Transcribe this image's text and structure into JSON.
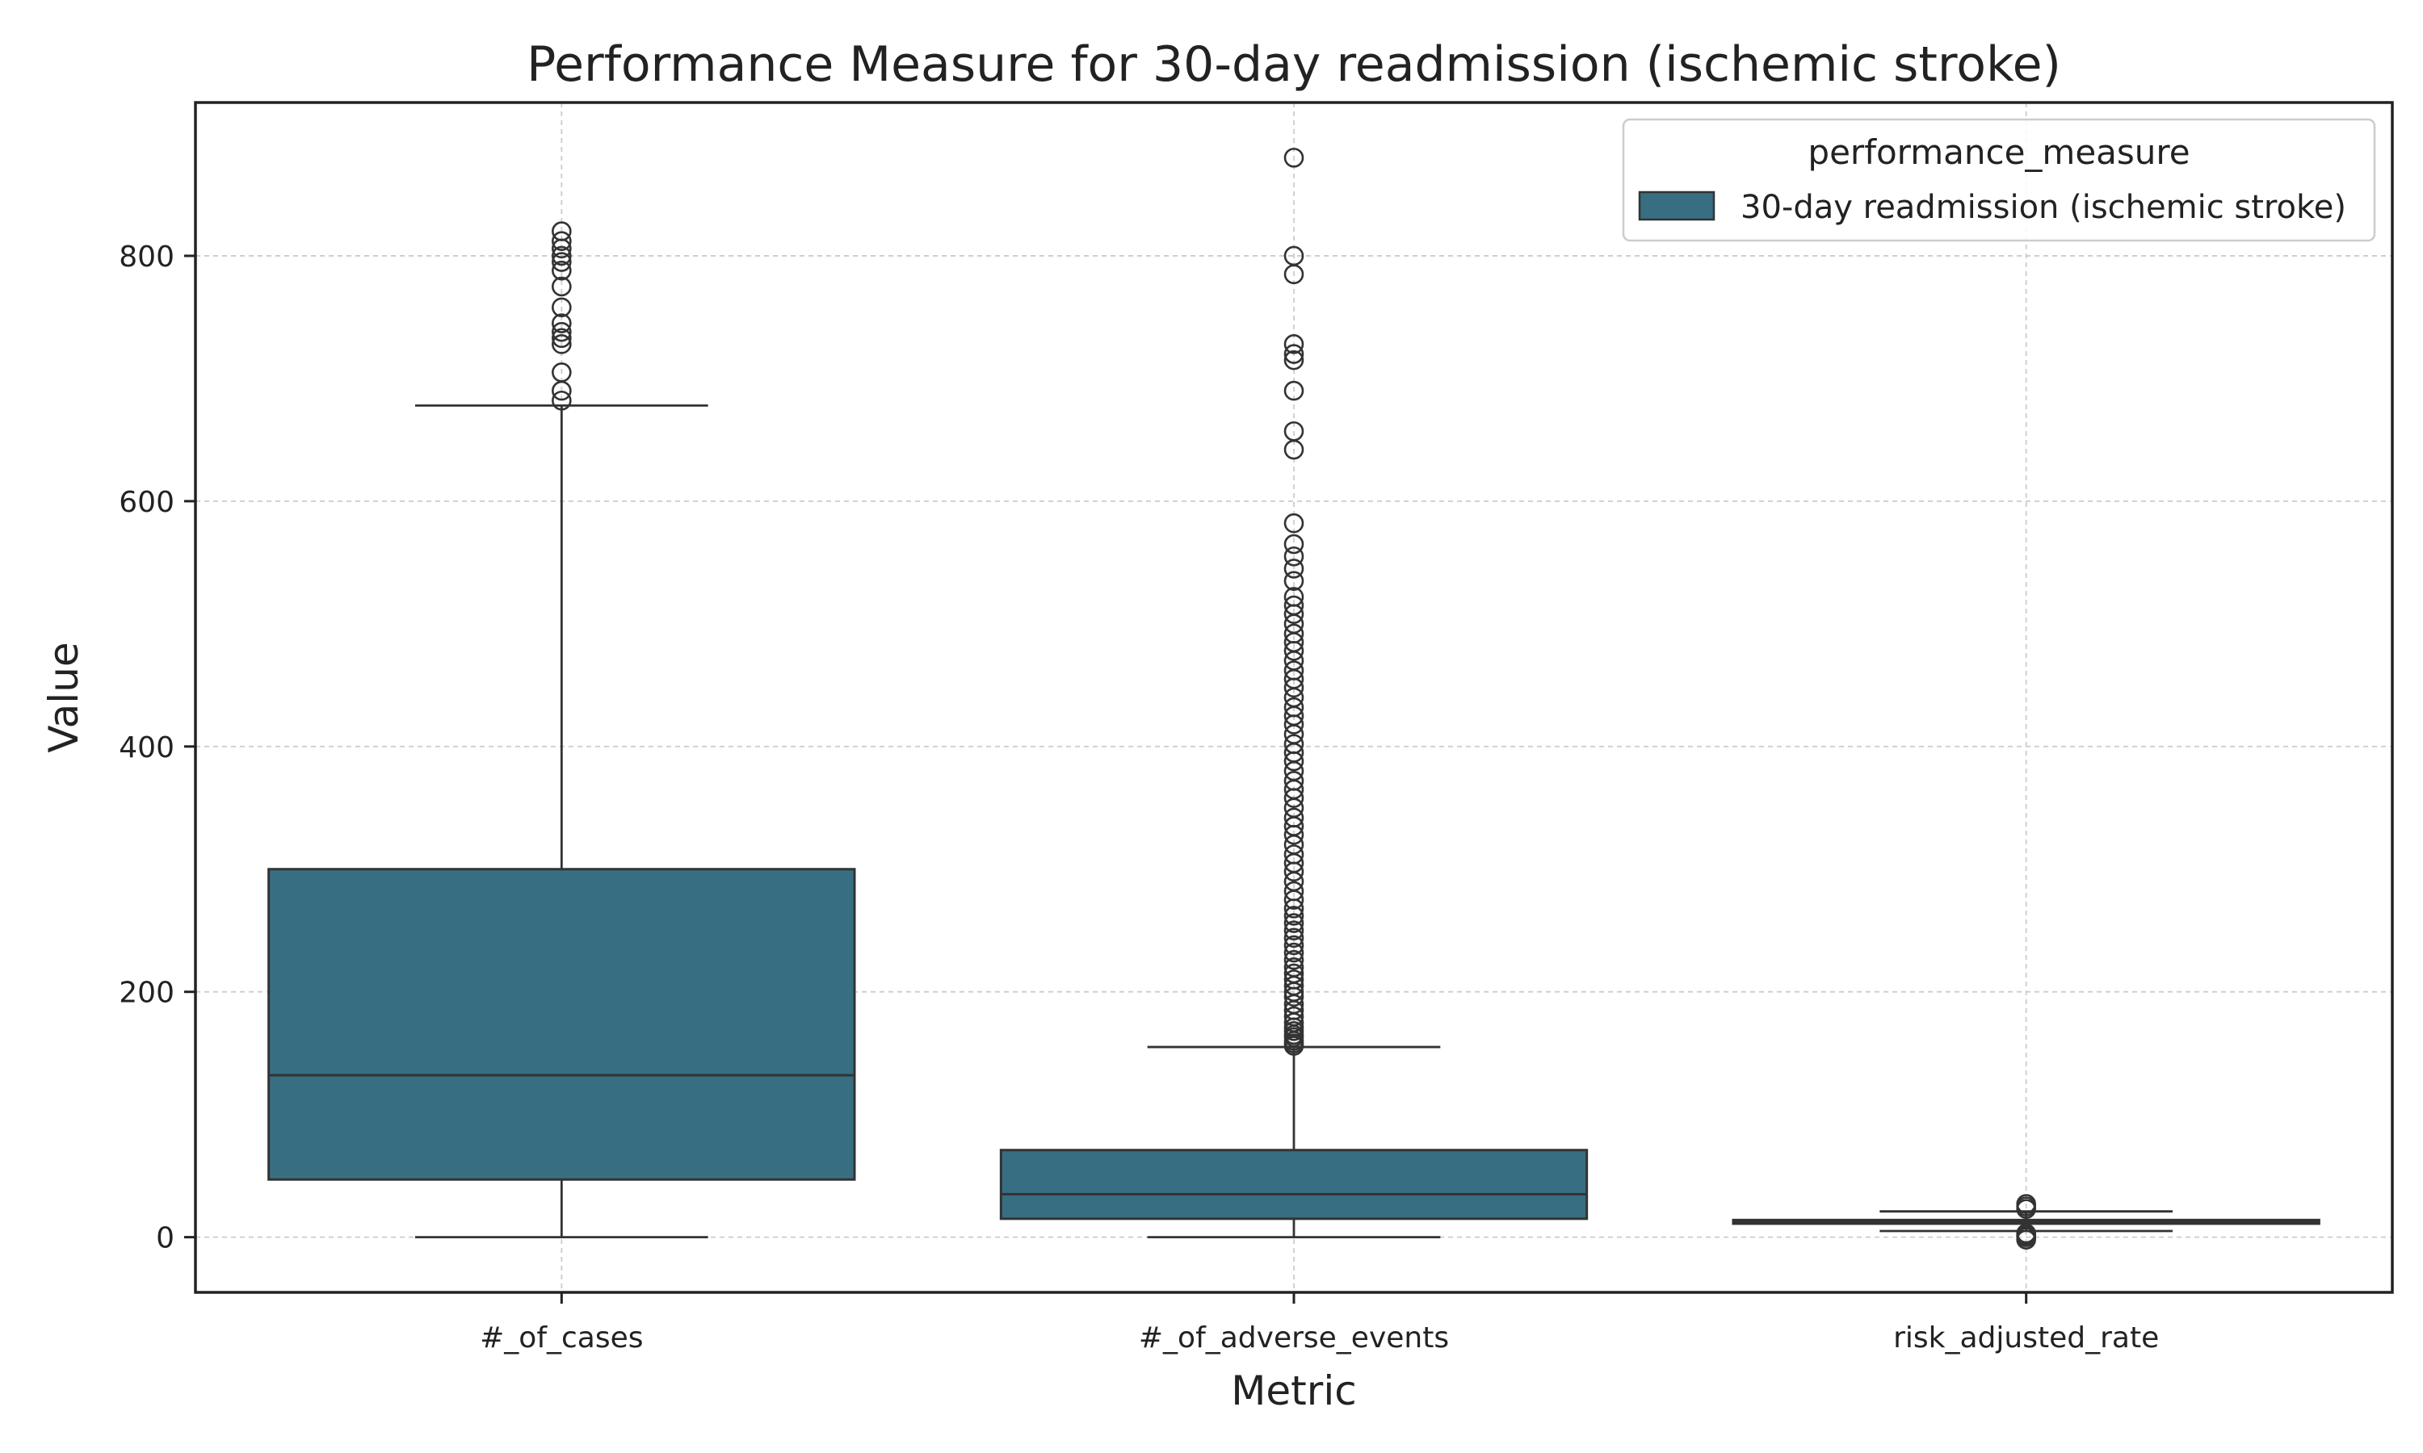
{
  "chart_data": {
    "type": "box",
    "title": "Performance Measure for 30-day readmission (ischemic stroke)",
    "xlabel": "Metric",
    "ylabel": "Value",
    "ylim": [
      -45,
      925
    ],
    "yticks": [
      0,
      200,
      400,
      600,
      800
    ],
    "grid": true,
    "legend": {
      "title": "performance_measure",
      "placement": "top-right",
      "entries": [
        "30-day readmission (ischemic stroke)"
      ]
    },
    "series": [
      {
        "name": "30-day readmission (ischemic stroke)",
        "color": "#386e82",
        "edge_color": "#333333"
      }
    ],
    "categories": [
      "#_of_cases",
      "#_of_adverse_events",
      "risk_adjusted_rate"
    ],
    "boxes": [
      {
        "category": "#_of_cases",
        "whisker_low": 0,
        "q1": 47,
        "median": 132,
        "q3": 300,
        "whisker_high": 678,
        "outliers": [
          682,
          690,
          705,
          728,
          733,
          738,
          745,
          758,
          775,
          788,
          795,
          800,
          806,
          812,
          820
        ]
      },
      {
        "category": "#_of_adverse_events",
        "whisker_low": 0,
        "q1": 15,
        "median": 35,
        "q3": 71,
        "whisker_high": 155,
        "outliers": [
          156,
          158,
          160,
          163,
          165,
          168,
          171,
          175,
          180,
          185,
          190,
          196,
          200,
          205,
          210,
          215,
          220,
          226,
          232,
          238,
          244,
          250,
          256,
          262,
          268,
          275,
          282,
          290,
          298,
          305,
          312,
          320,
          328,
          335,
          342,
          350,
          358,
          365,
          372,
          380,
          388,
          395,
          402,
          410,
          418,
          425,
          432,
          440,
          448,
          455,
          462,
          470,
          478,
          485,
          492,
          500,
          508,
          515,
          522,
          535,
          545,
          555,
          565,
          582,
          642,
          657,
          690,
          715,
          720,
          728,
          785,
          800,
          880
        ]
      },
      {
        "category": "risk_adjusted_rate",
        "whisker_low": 5,
        "q1": 11,
        "median": 12.5,
        "q3": 14,
        "whisker_high": 21,
        "outliers": [
          -2,
          0,
          1,
          2,
          3,
          23,
          25,
          27
        ]
      }
    ]
  }
}
